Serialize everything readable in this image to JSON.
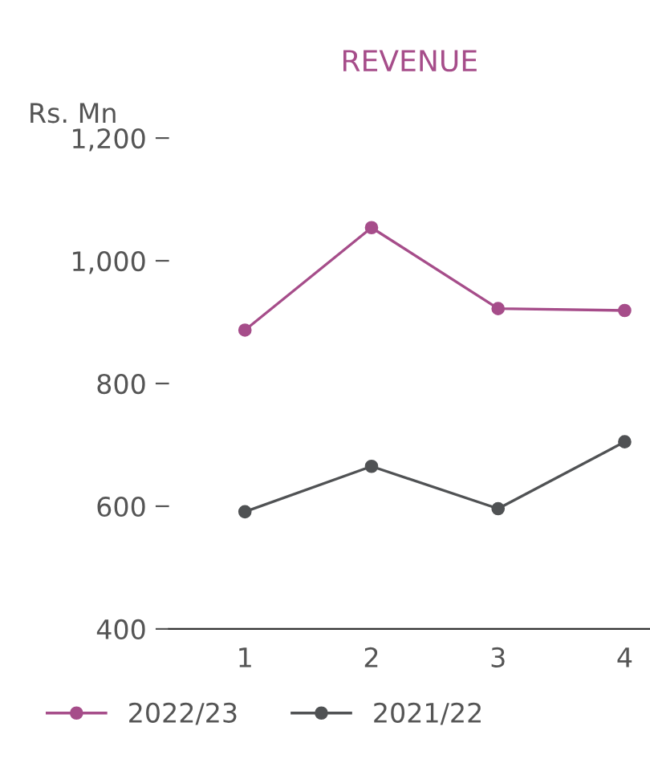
{
  "chart_data": {
    "type": "line",
    "title": "REVENUE",
    "ylabel": "Rs. Mn",
    "categories": [
      "1",
      "2",
      "3",
      "4"
    ],
    "series": [
      {
        "name": "2022/23",
        "color": "#a64d8a",
        "values": [
          887,
          1054,
          922,
          919
        ]
      },
      {
        "name": "2021/22",
        "color": "#505254",
        "values": [
          591,
          665,
          596,
          705
        ]
      }
    ],
    "ylim": [
      400,
      1200
    ],
    "yticks": [
      {
        "value": 400,
        "label": "400"
      },
      {
        "value": 600,
        "label": "600"
      },
      {
        "value": 800,
        "label": "800"
      },
      {
        "value": 1000,
        "label": "1,000"
      },
      {
        "value": 1200,
        "label": "1,200"
      }
    ],
    "grid": false,
    "legend": "bottom",
    "marker": "circle",
    "line_style": "solid"
  }
}
